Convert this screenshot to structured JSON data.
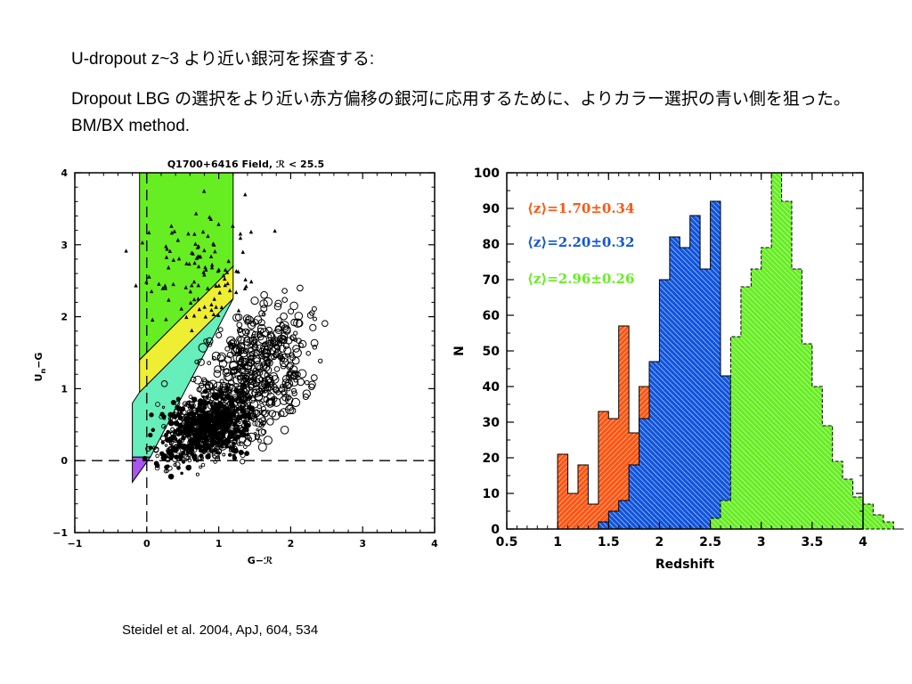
{
  "slide": {
    "heading": "U-dropout z~3 より近い銀河を探査する:",
    "body": "Dropout LBG の選択をより近い赤方偏移の銀河に応用するために、よりカラー選択の青い側を狙った。BM/BX method.",
    "citation": "Steidel et al. 2004, ApJ, 604, 534"
  },
  "chart_data": [
    {
      "type": "scatter",
      "title": "Q1700+6416 Field, ℛ < 25.5",
      "xlabel": "G−ℛ",
      "ylabel": "U",
      "ylabel_sub": "n",
      "ylabel_suffix": "−G",
      "xlim": [
        -1,
        4
      ],
      "ylim": [
        -1,
        4
      ],
      "xticks": [
        "−1",
        "0",
        "1",
        "2",
        "3",
        "4"
      ],
      "yticks": [
        "−1",
        "0",
        "1",
        "2",
        "3",
        "4"
      ],
      "regions": [
        {
          "name": "green",
          "color": "#66ee22",
          "polygon": [
            [
              -0.1,
              4
            ],
            [
              1.2,
              4
            ],
            [
              1.2,
              2.7
            ],
            [
              -0.1,
              1.4
            ]
          ]
        },
        {
          "name": "yellow",
          "color": "#eeee33",
          "polygon": [
            [
              -0.1,
              1.4
            ],
            [
              1.2,
              2.7
            ],
            [
              1.2,
              2.25
            ],
            [
              -0.1,
              0.95
            ]
          ]
        },
        {
          "name": "cyan",
          "color": "#66eebb",
          "polygon": [
            [
              -0.2,
              0.8
            ],
            [
              -0.1,
              0.95
            ],
            [
              1.2,
              2.25
            ],
            [
              0.05,
              0.05
            ],
            [
              -0.2,
              0.05
            ]
          ]
        },
        {
          "name": "violet",
          "color": "#aa55ee",
          "polygon": [
            [
              -0.2,
              0.05
            ],
            [
              0.05,
              0.05
            ],
            [
              -0.2,
              -0.3
            ]
          ]
        }
      ],
      "guides": {
        "dashed_x": 0,
        "dashed_y": 0
      },
      "dense_cloud": {
        "center": [
          0.85,
          0.45
        ],
        "spread": [
          0.45,
          0.32
        ],
        "count": 900
      },
      "scatter_cloud": {
        "center": [
          1.5,
          1.2
        ],
        "spread": [
          0.8,
          0.8
        ],
        "count": 520
      },
      "triangle_cloud": {
        "center": [
          0.75,
          2.7
        ],
        "spread": [
          0.55,
          0.55
        ],
        "count": 110
      }
    },
    {
      "type": "histogram",
      "xlabel": "Redshift",
      "ylabel": "N",
      "xlim": [
        0.5,
        4
      ],
      "ylim": [
        0,
        100
      ],
      "xticks": [
        "0.5",
        "1",
        "1.5",
        "2",
        "2.5",
        "3",
        "3.5",
        "4"
      ],
      "yticks": [
        "0",
        "10",
        "20",
        "30",
        "40",
        "50",
        "60",
        "70",
        "80",
        "90",
        "100"
      ],
      "bin_width": 0.1,
      "legend": [
        "⟨z⟩=1.70±0.34",
        "⟨z⟩=2.20±0.32",
        "⟨z⟩=2.96±0.26"
      ],
      "series": [
        {
          "color": "#ff5511",
          "x_start": 1.0,
          "values": [
            21,
            10,
            18,
            7,
            33,
            31,
            57,
            27,
            40,
            42,
            41,
            22,
            7,
            4,
            4,
            0
          ]
        },
        {
          "color": "#1155dd",
          "x_start": 1.4,
          "values": [
            2,
            5,
            8,
            18,
            31,
            47,
            70,
            82,
            79,
            88,
            73,
            92,
            43,
            19,
            8,
            6,
            3,
            0
          ]
        },
        {
          "color": "#66ee22",
          "x_start": 2.5,
          "values": [
            3,
            8,
            54,
            68,
            73,
            79,
            100,
            92,
            73,
            52,
            40,
            29,
            19,
            14,
            9,
            7,
            4,
            2,
            0
          ]
        }
      ]
    }
  ]
}
